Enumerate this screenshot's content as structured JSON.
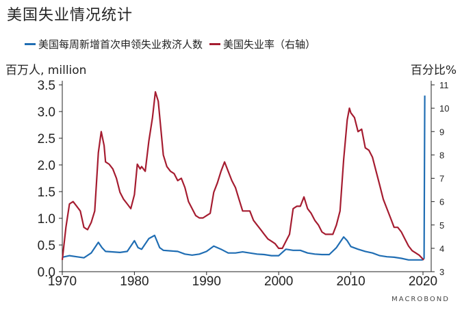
{
  "chart_data": {
    "type": "line",
    "title": "美国失业情况统计",
    "left_axis_label": "百万人, million",
    "right_axis_label": "百分比%",
    "left_ylim": [
      0,
      3.5
    ],
    "left_ticks": [
      "0.0",
      "0.5",
      "1.0",
      "1.5",
      "2.0",
      "2.5",
      "3.0",
      "3.5"
    ],
    "right_ylim": [
      3,
      11
    ],
    "right_ticks": [
      "3",
      "4",
      "5",
      "6",
      "7",
      "8",
      "9",
      "10",
      "11"
    ],
    "xlim": [
      1970,
      2020
    ],
    "x_ticks": [
      "1970",
      "1980",
      "1990",
      "2000",
      "2010",
      "2020"
    ],
    "source": "MACROBOND",
    "colors": {
      "claims": "#1f6db3",
      "unemployment": "#a51c30"
    },
    "series": [
      {
        "name": "美国每周新增首次申领失业救济人数",
        "axis": "left",
        "x": [
          1970,
          1971,
          1972,
          1973,
          1974,
          1975,
          1975.5,
          1976,
          1977,
          1978,
          1979,
          1980,
          1980.5,
          1981,
          1982,
          1982.8,
          1983.5,
          1984,
          1985,
          1986,
          1987,
          1988,
          1989,
          1990,
          1991,
          1992,
          1993,
          1994,
          1995,
          1996,
          1997,
          1998,
          1999,
          2000,
          2001,
          2002,
          2003,
          2004,
          2005,
          2006,
          2007,
          2008,
          2009,
          2009.5,
          2010,
          2011,
          2012,
          2013,
          2014,
          2015,
          2016,
          2017,
          2018,
          2019,
          2019.9,
          2020.15,
          2020.25
        ],
        "values": [
          0.27,
          0.3,
          0.28,
          0.26,
          0.35,
          0.55,
          0.45,
          0.38,
          0.37,
          0.36,
          0.38,
          0.58,
          0.45,
          0.42,
          0.62,
          0.68,
          0.45,
          0.4,
          0.39,
          0.38,
          0.33,
          0.31,
          0.33,
          0.38,
          0.48,
          0.42,
          0.35,
          0.35,
          0.37,
          0.35,
          0.33,
          0.32,
          0.3,
          0.3,
          0.42,
          0.4,
          0.4,
          0.35,
          0.33,
          0.32,
          0.32,
          0.45,
          0.65,
          0.58,
          0.47,
          0.42,
          0.38,
          0.35,
          0.3,
          0.28,
          0.27,
          0.25,
          0.22,
          0.22,
          0.22,
          0.25,
          3.3
        ]
      },
      {
        "name": "美国失业率（右轴）",
        "axis": "right",
        "x": [
          1970,
          1970.5,
          1971,
          1971.5,
          1972,
          1972.5,
          1973,
          1973.5,
          1974,
          1974.5,
          1975,
          1975.4,
          1975.8,
          1976,
          1976.5,
          1977,
          1977.5,
          1978,
          1978.5,
          1979,
          1979.5,
          1980,
          1980.4,
          1980.8,
          1981,
          1981.5,
          1982,
          1982.5,
          1982.9,
          1983.3,
          1983.7,
          1984,
          1984.5,
          1985,
          1985.5,
          1986,
          1986.5,
          1987,
          1987.5,
          1988,
          1988.5,
          1989,
          1989.5,
          1990,
          1990.5,
          1991,
          1991.5,
          1992,
          1992.5,
          1993,
          1993.5,
          1994,
          1994.5,
          1995,
          1995.5,
          1996,
          1996.5,
          1997,
          1997.5,
          1998,
          1998.5,
          1999,
          1999.5,
          2000,
          2000.5,
          2001,
          2001.5,
          2002,
          2002.5,
          2003,
          2003.5,
          2004,
          2004.5,
          2005,
          2005.5,
          2006,
          2006.5,
          2007,
          2007.5,
          2008,
          2008.5,
          2009,
          2009.5,
          2009.8,
          2010,
          2010.5,
          2011,
          2011.5,
          2012,
          2012.5,
          2013,
          2013.5,
          2014,
          2014.5,
          2015,
          2015.5,
          2016,
          2016.5,
          2017,
          2017.5,
          2018,
          2018.5,
          2019,
          2019.5,
          2020.1
        ],
        "values": [
          3.5,
          4.9,
          5.9,
          6.0,
          5.8,
          5.6,
          4.9,
          4.8,
          5.1,
          5.6,
          8.1,
          9.0,
          8.4,
          7.7,
          7.6,
          7.4,
          7.0,
          6.4,
          6.1,
          5.9,
          5.7,
          6.3,
          7.6,
          7.4,
          7.5,
          7.3,
          8.6,
          9.6,
          10.7,
          10.3,
          9.0,
          8.0,
          7.5,
          7.3,
          7.2,
          6.9,
          7.0,
          6.6,
          6.0,
          5.7,
          5.4,
          5.3,
          5.3,
          5.4,
          5.5,
          6.4,
          6.8,
          7.3,
          7.7,
          7.3,
          6.9,
          6.6,
          6.1,
          5.6,
          5.6,
          5.6,
          5.2,
          5.0,
          4.8,
          4.6,
          4.4,
          4.3,
          4.2,
          4.0,
          4.0,
          4.3,
          4.6,
          5.7,
          5.8,
          5.8,
          6.2,
          5.7,
          5.5,
          5.2,
          5.0,
          4.7,
          4.6,
          4.6,
          4.6,
          5.0,
          5.6,
          7.8,
          9.5,
          10.0,
          9.8,
          9.6,
          9.0,
          9.1,
          8.3,
          8.2,
          7.9,
          7.3,
          6.7,
          6.1,
          5.7,
          5.3,
          4.9,
          4.9,
          4.7,
          4.4,
          4.1,
          3.9,
          3.8,
          3.7,
          3.5
        ]
      }
    ]
  }
}
